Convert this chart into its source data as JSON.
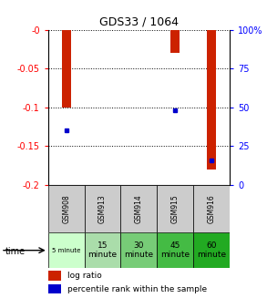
{
  "title": "GDS33 / 1064",
  "samples": [
    "GSM908",
    "GSM913",
    "GSM914",
    "GSM915",
    "GSM916"
  ],
  "log_ratios": [
    -0.1,
    0.0,
    0.0,
    -0.03,
    -0.18
  ],
  "percentile_ranks": [
    0.35,
    null,
    null,
    0.48,
    0.155
  ],
  "ylim": [
    -0.2,
    0.0
  ],
  "yticks": [
    0.0,
    -0.05,
    -0.1,
    -0.15,
    -0.2
  ],
  "ytick_labels": [
    "-0",
    "-0.05",
    "-0.1",
    "-0.15",
    "-0.2"
  ],
  "right_ytick_pcts": [
    100,
    75,
    50,
    25,
    0
  ],
  "right_ytick_labels": [
    "100%",
    "75",
    "50",
    "25",
    "0"
  ],
  "time_labels": [
    "5 minute",
    "15\nminute",
    "30\nminute",
    "45\nminute",
    "60\nminute"
  ],
  "time_colors": [
    "#ccffcc",
    "#aaddaa",
    "#77cc77",
    "#44bb44",
    "#22aa22"
  ],
  "bar_color": "#cc2200",
  "dot_color": "#0000cc",
  "bar_width": 0.25,
  "cell_bg_gray": "#cccccc",
  "legend_red_label": "log ratio",
  "legend_blue_label": "percentile rank within the sample"
}
